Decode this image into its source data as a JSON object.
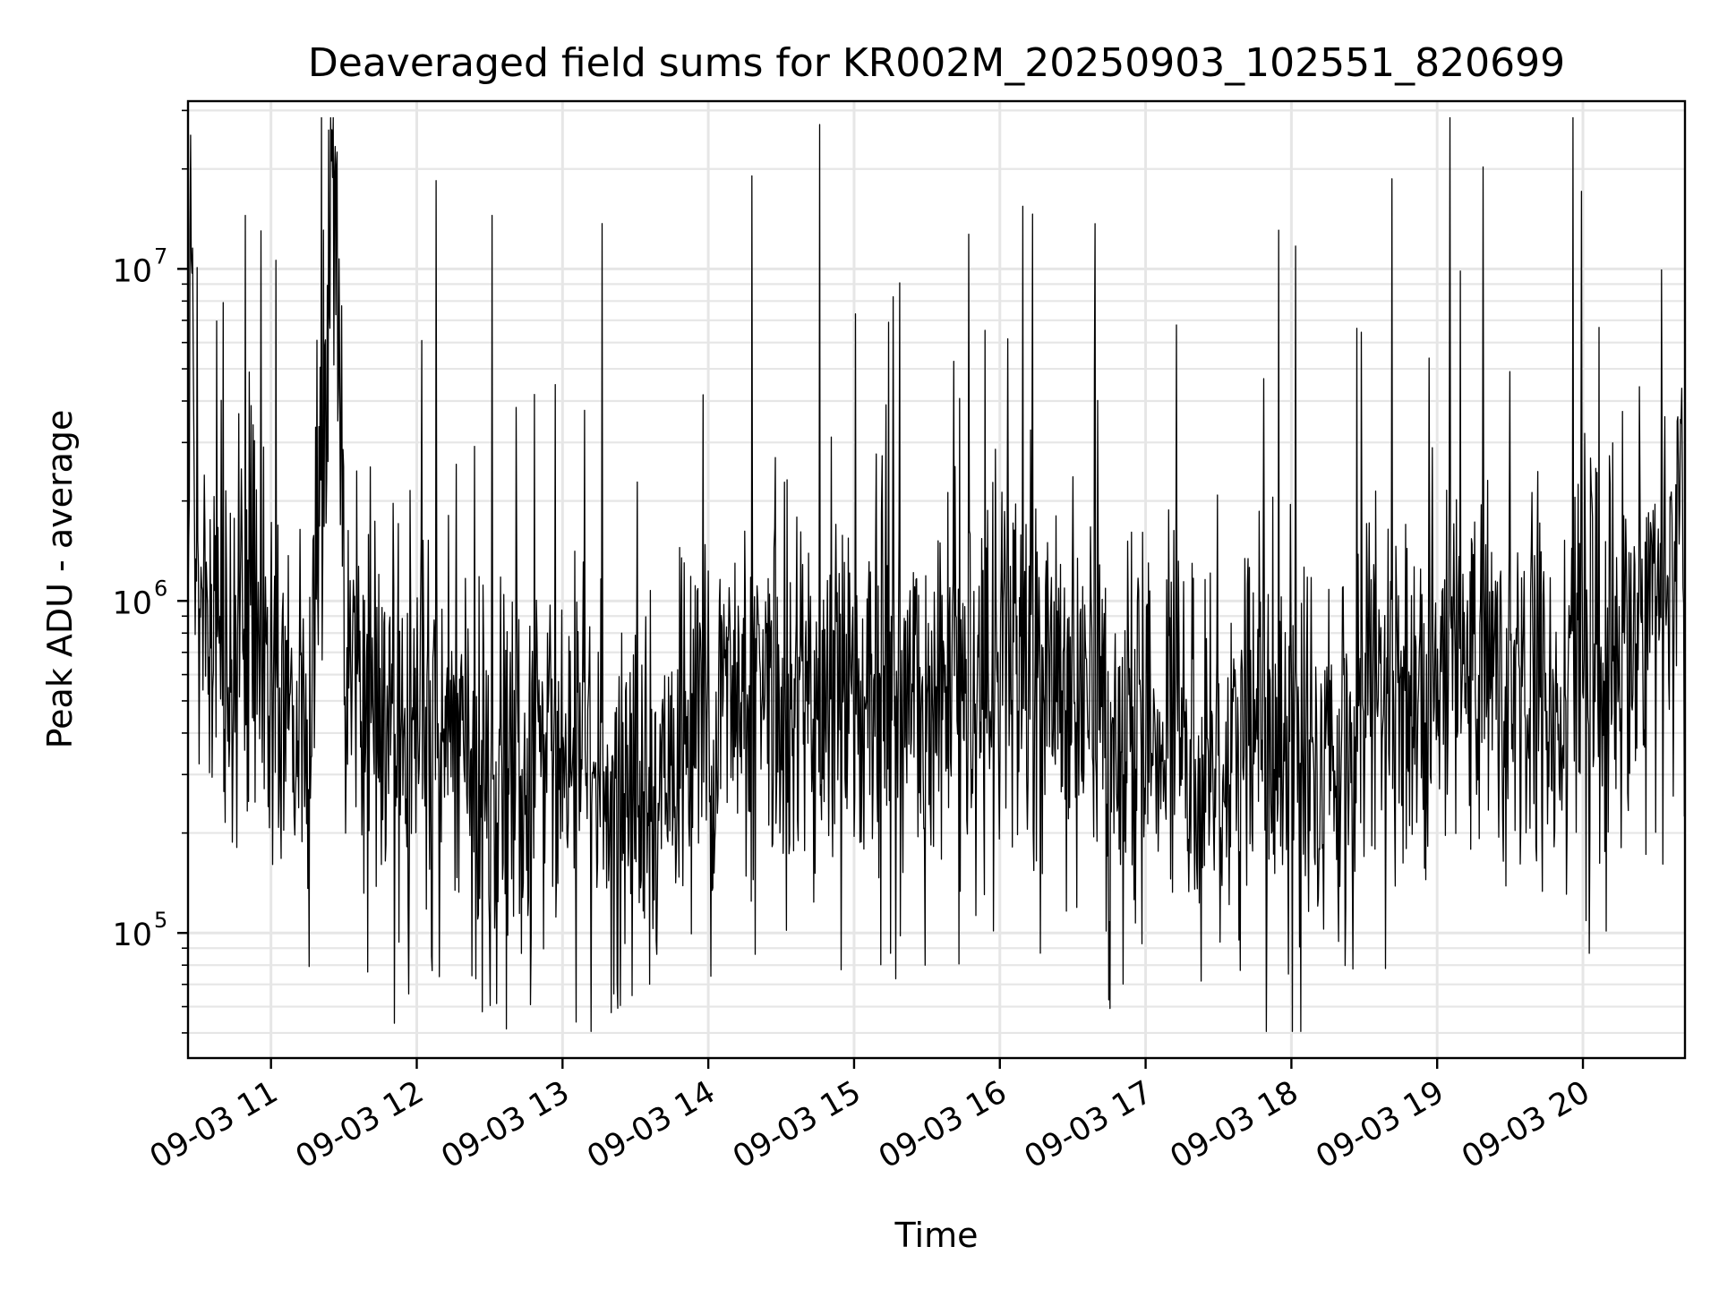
{
  "chart_data": {
    "type": "line",
    "title": "Deaveraged field sums for KR002M_20250903_102551_820699",
    "xlabel": "Time",
    "ylabel": "Peak ADU - average",
    "xlim": [
      "2025-09-03 10:25:51",
      "2025-09-03 20:42:00"
    ],
    "ylim": [
      42000,
      32000000
    ],
    "yscale": "log",
    "grid": true,
    "x_ticks": [
      {
        "time": "2025-09-03 11:00",
        "label": "09-03 11"
      },
      {
        "time": "2025-09-03 12:00",
        "label": "09-03 12"
      },
      {
        "time": "2025-09-03 13:00",
        "label": "09-03 13"
      },
      {
        "time": "2025-09-03 14:00",
        "label": "09-03 14"
      },
      {
        "time": "2025-09-03 15:00",
        "label": "09-03 15"
      },
      {
        "time": "2025-09-03 16:00",
        "label": "09-03 16"
      },
      {
        "time": "2025-09-03 17:00",
        "label": "09-03 17"
      },
      {
        "time": "2025-09-03 18:00",
        "label": "09-03 18"
      },
      {
        "time": "2025-09-03 19:00",
        "label": "09-03 19"
      },
      {
        "time": "2025-09-03 20:00",
        "label": "09-03 20"
      }
    ],
    "y_ticks": [
      {
        "value": 100000,
        "base": "10",
        "exp": "5"
      },
      {
        "value": 1000000,
        "base": "10",
        "exp": "6"
      },
      {
        "value": 10000000,
        "base": "10",
        "exp": "7"
      }
    ],
    "series": [
      {
        "color": "#000000",
        "x": [
          "2025-09-03 10:25:51",
          "2025-09-03 10:27:00",
          "2025-09-03 10:29:00",
          "2025-09-03 10:33:00",
          "2025-09-03 10:42:00",
          "2025-09-03 10:52:00",
          "2025-09-03 11:02:00",
          "2025-09-03 11:15:00",
          "2025-09-03 11:26:00",
          "2025-09-03 11:30:00",
          "2025-09-03 11:42:00",
          "2025-09-03 11:55:00",
          "2025-09-03 12:03:00",
          "2025-09-03 12:15:00",
          "2025-09-03 12:30:00",
          "2025-09-03 12:45:00",
          "2025-09-03 12:55:00",
          "2025-09-03 13:10:00",
          "2025-09-03 13:25:00",
          "2025-09-03 13:40:00",
          "2025-09-03 13:53:00",
          "2025-09-03 14:08:00",
          "2025-09-03 14:20:00",
          "2025-09-03 14:35:00",
          "2025-09-03 14:50:00",
          "2025-09-03 15:05:00",
          "2025-09-03 15:20:00",
          "2025-09-03 15:35:00",
          "2025-09-03 15:45:00",
          "2025-09-03 16:00:00",
          "2025-09-03 16:15:00",
          "2025-09-03 16:30:00",
          "2025-09-03 16:45:00",
          "2025-09-03 17:00:00",
          "2025-09-03 17:15:00",
          "2025-09-03 17:30:00",
          "2025-09-03 17:45:00",
          "2025-09-03 18:00:00",
          "2025-09-03 18:15:00",
          "2025-09-03 18:30:00",
          "2025-09-03 18:45:00",
          "2025-09-03 18:58:00",
          "2025-09-03 19:10:00",
          "2025-09-03 19:25:00",
          "2025-09-03 19:40:00",
          "2025-09-03 19:55:00",
          "2025-09-03 20:10:00",
          "2025-09-03 20:25:00",
          "2025-09-03 20:42:00"
        ],
        "y": [
          1200000,
          24000000,
          1100000,
          1000000,
          650000,
          1100000,
          500000,
          350000,
          14000000,
          800000,
          450000,
          400000,
          500000,
          350000,
          300000,
          250000,
          350000,
          300000,
          250000,
          280000,
          400000,
          500000,
          500000,
          550000,
          550000,
          500000,
          500000,
          520000,
          500000,
          600000,
          700000,
          550000,
          350000,
          450000,
          400000,
          350000,
          400000,
          350000,
          350000,
          450000,
          500000,
          600000,
          700000,
          600000,
          550000,
          650000,
          700000,
          900000,
          1600000
        ]
      }
    ]
  }
}
